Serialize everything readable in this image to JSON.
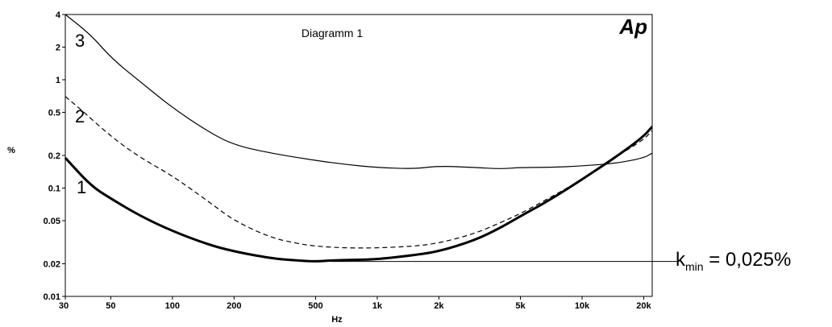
{
  "chart_data": {
    "type": "line",
    "title": "Diagramm 1",
    "xlabel": "Hz",
    "ylabel": "%",
    "x_scale": "log",
    "y_scale": "log",
    "xlim": [
      30,
      22000
    ],
    "ylim": [
      0.01,
      4
    ],
    "x_ticks": [
      {
        "value": 30,
        "label": "30"
      },
      {
        "value": 50,
        "label": "50"
      },
      {
        "value": 100,
        "label": "100"
      },
      {
        "value": 200,
        "label": "200"
      },
      {
        "value": 500,
        "label": "500"
      },
      {
        "value": 1000,
        "label": "1k"
      },
      {
        "value": 2000,
        "label": "2k"
      },
      {
        "value": 5000,
        "label": "5k"
      },
      {
        "value": 10000,
        "label": "10k"
      },
      {
        "value": 20000,
        "label": "20k"
      }
    ],
    "y_ticks": [
      {
        "value": 4,
        "label": "4"
      },
      {
        "value": 2,
        "label": "2"
      },
      {
        "value": 1,
        "label": "1"
      },
      {
        "value": 0.5,
        "label": "0.5"
      },
      {
        "value": 0.2,
        "label": "0.2"
      },
      {
        "value": 0.1,
        "label": "0.1"
      },
      {
        "value": 0.05,
        "label": "0.05"
      },
      {
        "value": 0.02,
        "label": "0.02"
      },
      {
        "value": 0.01,
        "label": "0.01"
      }
    ],
    "grid": false,
    "series": [
      {
        "name": "1",
        "style": "solid-thick",
        "x": [
          30,
          40,
          50,
          70,
          100,
          150,
          200,
          300,
          400,
          500,
          600,
          800,
          1000,
          1500,
          2000,
          3000,
          4000,
          5000,
          7000,
          10000,
          15000,
          20000,
          22000
        ],
        "y": [
          0.19,
          0.105,
          0.08,
          0.055,
          0.04,
          0.03,
          0.026,
          0.0225,
          0.0215,
          0.021,
          0.0215,
          0.0218,
          0.022,
          0.024,
          0.026,
          0.033,
          0.043,
          0.055,
          0.078,
          0.12,
          0.2,
          0.3,
          0.37
        ]
      },
      {
        "name": "2",
        "style": "dashed",
        "x": [
          30,
          35,
          50,
          70,
          100,
          150,
          200,
          300,
          400,
          500,
          700,
          1000,
          1500,
          2000,
          3000,
          4000,
          5000,
          7000,
          10000,
          15000,
          20000,
          22000
        ],
        "y": [
          0.7,
          0.55,
          0.3,
          0.19,
          0.13,
          0.075,
          0.05,
          0.035,
          0.031,
          0.029,
          0.028,
          0.028,
          0.029,
          0.031,
          0.038,
          0.048,
          0.058,
          0.082,
          0.12,
          0.2,
          0.28,
          0.34
        ]
      },
      {
        "name": "3",
        "style": "solid-thin",
        "x": [
          30,
          40,
          50,
          70,
          100,
          150,
          200,
          300,
          500,
          700,
          1000,
          1500,
          2000,
          3000,
          4000,
          5000,
          7000,
          10000,
          15000,
          20000,
          22000
        ],
        "y": [
          4,
          2.6,
          1.6,
          0.95,
          0.55,
          0.33,
          0.25,
          0.21,
          0.18,
          0.165,
          0.155,
          0.15,
          0.16,
          0.155,
          0.15,
          0.155,
          0.155,
          0.16,
          0.17,
          0.19,
          0.21
        ]
      }
    ],
    "reference_line": {
      "value": 0.021,
      "from_x": 600
    }
  },
  "annotations": {
    "label_1": "1",
    "label_2": "2",
    "label_3": "3",
    "logo": "Ap",
    "kmin_main": "k",
    "kmin_sub": "min",
    "kmin_value": " = 0,025%"
  }
}
